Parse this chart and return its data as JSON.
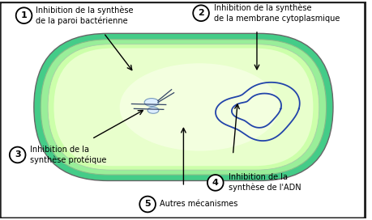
{
  "bg_color": "#ffffff",
  "border_color": "#222222",
  "cell_outer_color": "#33cc77",
  "cell_mid_color": "#66dd88",
  "cell_inner_color": "#ccffcc",
  "cell_cytoplasm_color": "#eeffcc",
  "dna_color": "#2244aa",
  "ribosome_color": "#ddeeff",
  "label1_num": "1",
  "label1_text": "Inhibition de la synthèse\nde la paroi bactérienne",
  "label2_num": "2",
  "label2_text": "Inhibition de la synthèse\nde la membrane cytoplasmique",
  "label3_num": "3",
  "label3_text": "Inhibition de la\nsynthèse protéique",
  "label4_num": "4",
  "label4_text": "Inhibition de la\nsynthèse de l'ADN",
  "label5_num": "5",
  "label5_text": "Autres mécanismes",
  "text_fontsize": 7.0,
  "num_fontsize": 8.0
}
